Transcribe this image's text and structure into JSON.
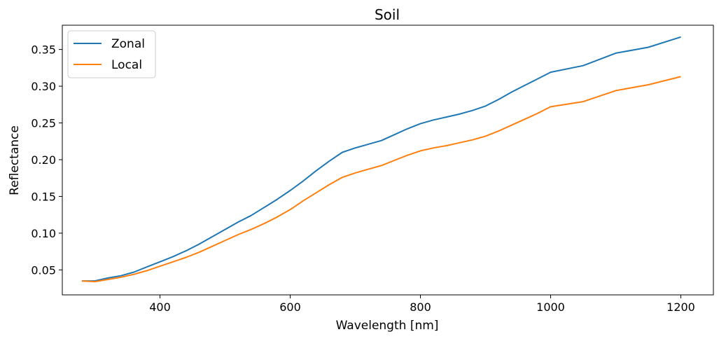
{
  "chart_data": {
    "type": "line",
    "title": "Soil",
    "xlabel": "Wavelength [nm]",
    "ylabel": "Reflectance",
    "xlim": [
      250,
      1250
    ],
    "ylim": [
      0.016,
      0.383
    ],
    "xticks": [
      400,
      600,
      800,
      1000,
      1200
    ],
    "xtick_labels": [
      "400",
      "600",
      "800",
      "1000",
      "1200"
    ],
    "yticks": [
      0.05,
      0.1,
      0.15,
      0.2,
      0.25,
      0.3,
      0.35
    ],
    "ytick_labels": [
      "0.05",
      "0.10",
      "0.15",
      "0.20",
      "0.25",
      "0.30",
      "0.35"
    ],
    "grid": false,
    "legend": "top-left",
    "x": [
      280,
      300,
      320,
      340,
      360,
      380,
      400,
      420,
      440,
      460,
      480,
      500,
      520,
      540,
      560,
      580,
      600,
      620,
      640,
      660,
      680,
      700,
      720,
      740,
      760,
      780,
      800,
      820,
      840,
      860,
      880,
      900,
      920,
      940,
      960,
      980,
      1000,
      1050,
      1100,
      1150,
      1200
    ],
    "series": [
      {
        "name": "Zonal",
        "color": "#1f77b4",
        "values": [
          0.035,
          0.035,
          0.039,
          0.042,
          0.047,
          0.054,
          0.061,
          0.068,
          0.076,
          0.085,
          0.095,
          0.105,
          0.115,
          0.124,
          0.135,
          0.146,
          0.158,
          0.171,
          0.185,
          0.198,
          0.21,
          0.216,
          0.221,
          0.226,
          0.234,
          0.242,
          0.249,
          0.254,
          0.258,
          0.262,
          0.267,
          0.273,
          0.282,
          0.292,
          0.301,
          0.31,
          0.319,
          0.328,
          0.345,
          0.353,
          0.367
        ]
      },
      {
        "name": "Local",
        "color": "#ff7f0e",
        "values": [
          0.035,
          0.034,
          0.037,
          0.04,
          0.044,
          0.049,
          0.055,
          0.061,
          0.067,
          0.074,
          0.082,
          0.09,
          0.098,
          0.105,
          0.113,
          0.122,
          0.132,
          0.144,
          0.155,
          0.166,
          0.176,
          0.182,
          0.187,
          0.192,
          0.199,
          0.206,
          0.212,
          0.216,
          0.219,
          0.223,
          0.227,
          0.232,
          0.239,
          0.247,
          0.255,
          0.263,
          0.272,
          0.279,
          0.294,
          0.302,
          0.313
        ]
      }
    ]
  }
}
